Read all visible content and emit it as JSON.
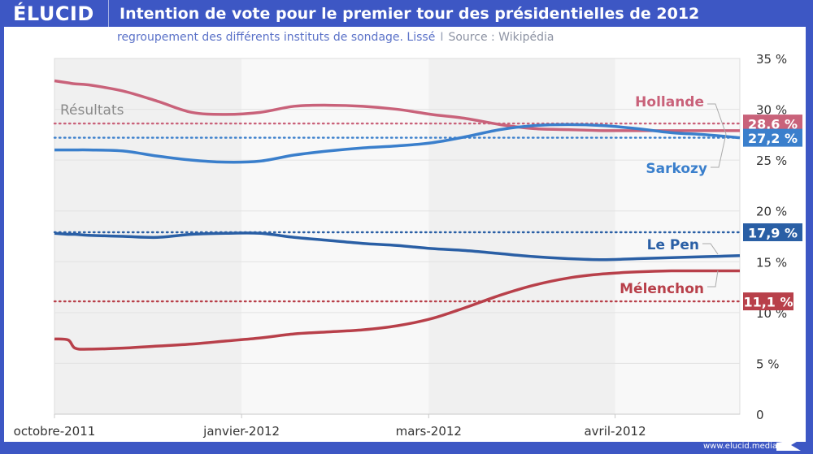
{
  "header": {
    "logo": "ÉLUCID",
    "title": "Intention de vote pour le premier tour des présidentielles de 2012"
  },
  "subtitle": {
    "text": "regroupement des différents instituts de sondage. Lissé",
    "separator": "I",
    "source": "Source : Wikipédia"
  },
  "footer": {
    "url": "www.elucid.media"
  },
  "colors": {
    "brand": "#3d57c4",
    "hollande": "#c9627a",
    "sarkozy": "#3a7fcc",
    "lepen": "#2a5fa5",
    "melenchon": "#b8404a"
  },
  "chart_data": {
    "type": "line",
    "title": "Intention de vote pour le premier tour des présidentielles de 2012",
    "subtitle": "regroupement des différents instituts de sondage. Lissé | Source : Wikipédia",
    "xlabel": "",
    "ylabel": "",
    "ylim": [
      0,
      35
    ],
    "yticks": [
      {
        "value": 0,
        "label": "0"
      },
      {
        "value": 5,
        "label": "5 %"
      },
      {
        "value": 10,
        "label": "10 %"
      },
      {
        "value": 15,
        "label": "15 %"
      },
      {
        "value": 20,
        "label": "20 %"
      },
      {
        "value": 25,
        "label": "25 %"
      },
      {
        "value": 30,
        "label": "30 %"
      },
      {
        "value": 35,
        "label": "35 %"
      }
    ],
    "y_axis_position": "right",
    "grid": true,
    "xlim": [
      0,
      1
    ],
    "xticks": [
      {
        "x": 0.0,
        "label": "octobre-2011"
      },
      {
        "x": 0.273,
        "label": "janvier-2012"
      },
      {
        "x": 0.546,
        "label": "mars-2012"
      },
      {
        "x": 0.818,
        "label": "avril-2012"
      }
    ],
    "bands": [
      {
        "from": 0.0,
        "to": 0.273,
        "shade": "dark"
      },
      {
        "from": 0.273,
        "to": 0.546,
        "shade": "light"
      },
      {
        "from": 0.546,
        "to": 0.818,
        "shade": "dark"
      },
      {
        "from": 0.818,
        "to": 1.0,
        "shade": "light"
      }
    ],
    "x": [
      0.0,
      0.02,
      0.03,
      0.05,
      0.1,
      0.15,
      0.2,
      0.25,
      0.3,
      0.35,
      0.4,
      0.45,
      0.5,
      0.55,
      0.6,
      0.65,
      0.7,
      0.75,
      0.8,
      0.85,
      0.9,
      0.95,
      1.0
    ],
    "series": [
      {
        "name": "Hollande",
        "color_key": "hollande",
        "values": [
          32.8,
          32.6,
          32.5,
          32.4,
          31.8,
          30.8,
          29.7,
          29.5,
          29.7,
          30.3,
          30.4,
          30.3,
          30.0,
          29.5,
          29.1,
          28.5,
          28.1,
          28.0,
          27.9,
          27.9,
          27.9,
          27.9,
          27.9
        ]
      },
      {
        "name": "Sarkozy",
        "color_key": "sarkozy",
        "values": [
          26.0,
          26.0,
          26.0,
          26.0,
          25.9,
          25.4,
          25.0,
          24.8,
          24.9,
          25.5,
          25.9,
          26.2,
          26.4,
          26.7,
          27.3,
          28.0,
          28.4,
          28.5,
          28.4,
          28.1,
          27.7,
          27.5,
          27.2
        ]
      },
      {
        "name": "Le Pen",
        "color_key": "lepen",
        "values": [
          17.8,
          17.7,
          17.7,
          17.6,
          17.5,
          17.4,
          17.7,
          17.8,
          17.8,
          17.4,
          17.1,
          16.8,
          16.6,
          16.3,
          16.1,
          15.8,
          15.5,
          15.3,
          15.2,
          15.3,
          15.4,
          15.5,
          15.6
        ]
      },
      {
        "name": "Mélenchon",
        "color_key": "melenchon",
        "values": [
          7.4,
          7.3,
          6.5,
          6.4,
          6.5,
          6.7,
          6.9,
          7.2,
          7.5,
          7.9,
          8.1,
          8.3,
          8.7,
          9.4,
          10.5,
          11.7,
          12.7,
          13.4,
          13.8,
          14.0,
          14.1,
          14.1,
          14.1
        ]
      }
    ],
    "results": [
      {
        "name": "Hollande",
        "value": 28.6,
        "label": "28,6 %",
        "color_key": "hollande"
      },
      {
        "name": "Sarkozy",
        "value": 27.2,
        "label": "27,2 %",
        "color_key": "sarkozy"
      },
      {
        "name": "Le Pen",
        "value": 17.9,
        "label": "17,9 %",
        "color_key": "lepen"
      },
      {
        "name": "Mélenchon",
        "value": 11.1,
        "label": "11,1 %",
        "color_key": "melenchon"
      }
    ],
    "annotations": [
      {
        "text": "Résultats",
        "anchor": "top-left"
      },
      {
        "text": "Hollande",
        "series": "Hollande",
        "anchor": "above-right"
      },
      {
        "text": "Sarkozy",
        "series": "Sarkozy",
        "anchor": "below-right"
      },
      {
        "text": "Le Pen",
        "series": "Le Pen",
        "anchor": "above-right"
      },
      {
        "text": "Mélenchon",
        "series": "Mélenchon",
        "anchor": "below-right"
      }
    ],
    "legend": "inline-labels"
  }
}
